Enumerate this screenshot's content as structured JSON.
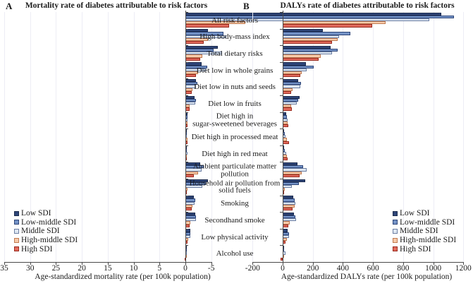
{
  "chart_data": [
    {
      "type": "bar",
      "orientation": "horizontal",
      "panel_label": "A",
      "title": "Mortality rate of diabetes attributable to risk factors",
      "xlabel": "Age-standardized mortality rate (per 100k population)",
      "xlim": [
        35,
        -5
      ],
      "xticks": [
        35,
        30,
        25,
        20,
        15,
        10,
        5,
        0,
        "-5"
      ],
      "bars_extend": "left",
      "grid": true,
      "categories": [
        "All risk factors",
        "High body-mass index",
        "Total dietary risks",
        "Diet low in whole grains",
        "Diet low in nuts and seeds",
        "Diet low in fruits",
        "Diet high in\nsugar-sweetened beverages",
        "Diet high in processed meat",
        "Diet high in red meat",
        "Ambient particulate matter\npollution",
        "Household air pollution from\nsolid fuels",
        "Smoking",
        "Secondhand smoke",
        "Low physical activity",
        "Alcohol use"
      ],
      "series": [
        {
          "name": "Low SDI",
          "values": [
            29.7,
            4.3,
            6.3,
            3.2,
            2.0,
            1.8,
            0.35,
            0.15,
            0.2,
            2.8,
            4.3,
            1.7,
            1.9,
            0.9,
            0.15
          ]
        },
        {
          "name": "Low-middle SDI",
          "values": [
            22.5,
            7.3,
            5.5,
            4.2,
            2.3,
            2.0,
            0.4,
            0.25,
            0.3,
            3.5,
            3.9,
            1.9,
            2.1,
            1.0,
            0.2
          ]
        },
        {
          "name": "Middle SDI",
          "values": [
            30.8,
            7.9,
            7.1,
            4.0,
            2.1,
            1.9,
            0.45,
            0.3,
            0.35,
            3.2,
            3.3,
            1.8,
            2.0,
            0.95,
            0.3
          ]
        },
        {
          "name": "High-middle SDI",
          "values": [
            11.6,
            4.4,
            3.3,
            2.4,
            1.4,
            0.85,
            0.35,
            0.35,
            0.3,
            2.4,
            0.35,
            1.4,
            1.0,
            0.6,
            0.15
          ]
        },
        {
          "name": "High SDI",
          "values": [
            8.4,
            3.6,
            2.9,
            2.1,
            1.2,
            0.75,
            0.45,
            0.45,
            0.25,
            1.7,
            0.1,
            1.2,
            0.8,
            0.45,
            -0.1
          ]
        }
      ]
    },
    {
      "type": "bar",
      "orientation": "horizontal",
      "panel_label": "B",
      "title": "DALYs rate of diabetes attributable to risk factors",
      "xlabel": "Age-standardized DALYs rate (per 100k population)",
      "xlim": [
        -200,
        1200
      ],
      "xticks": [
        -200,
        0,
        200,
        400,
        600,
        800,
        1000,
        1200
      ],
      "bars_extend": "right",
      "grid": true,
      "categories": [
        "All risk factors",
        "High body-mass index",
        "Total dietary risks",
        "Diet low in whole grains",
        "Diet low in nuts and seeds",
        "Diet low in fruits",
        "Diet high in\nsugar-sweetened beverages",
        "Diet high in processed meat",
        "Diet high in red meat",
        "Ambient particulate matter\npollution",
        "Household air pollution from\nsolid fuels",
        "Smoking",
        "Secondhand smoke",
        "Low physical activity",
        "Alcohol use"
      ],
      "series": [
        {
          "name": "Low SDI",
          "values": [
            1055,
            265,
            320,
            155,
            105,
            113,
            22,
            11,
            11,
            98,
            152,
            69,
            73,
            31,
            5
          ]
        },
        {
          "name": "Low-middle SDI",
          "values": [
            1140,
            450,
            365,
            205,
            122,
            105,
            27,
            14,
            16,
            135,
            107,
            78,
            84,
            40,
            11
          ]
        },
        {
          "name": "Middle SDI",
          "values": [
            975,
            375,
            330,
            160,
            118,
            95,
            31,
            19,
            22,
            160,
            60,
            84,
            89,
            42,
            19
          ]
        },
        {
          "name": "High-middle SDI",
          "values": [
            685,
            365,
            255,
            128,
            66,
            58,
            31,
            27,
            27,
            128,
            14,
            81,
            47,
            28,
            7
          ]
        },
        {
          "name": "High SDI",
          "values": [
            595,
            330,
            240,
            115,
            58,
            63,
            38,
            42,
            31,
            114,
            5,
            66,
            38,
            18,
            -15
          ]
        }
      ]
    }
  ],
  "legend": {
    "position": "inside-bottom",
    "items": [
      {
        "label": "Low SDI",
        "fill": "#2F4679",
        "stroke": "#1C2B4D"
      },
      {
        "label": "Low-middle SDI",
        "fill": "#7493C7",
        "stroke": "#2F4679"
      },
      {
        "label": "Middle SDI",
        "fill": "#DEE7F2",
        "stroke": "#6C7FA3"
      },
      {
        "label": "High-middle SDI",
        "fill": "#F6CAAA",
        "stroke": "#C07A50"
      },
      {
        "label": "High SDI",
        "fill": "#E26A5C",
        "stroke": "#992B1F"
      }
    ]
  }
}
